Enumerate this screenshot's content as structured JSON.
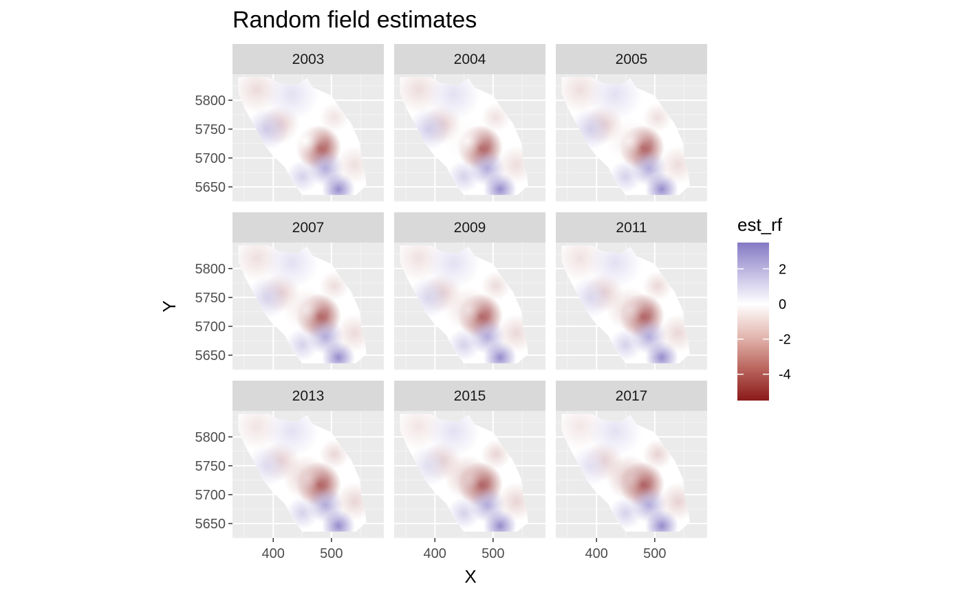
{
  "chart_data": {
    "type": "heatmap",
    "title": "Random field estimates",
    "xlabel": "X",
    "ylabel": "Y",
    "facets": [
      "2003",
      "2004",
      "2005",
      "2007",
      "2009",
      "2011",
      "2013",
      "2015",
      "2017"
    ],
    "x_ticks": [
      400,
      500
    ],
    "y_ticks": [
      5650,
      5700,
      5750,
      5800
    ],
    "xlim": [
      330,
      590
    ],
    "ylim": [
      5625,
      5845
    ],
    "legend": {
      "title": "est_rf",
      "ticks": [
        2,
        0,
        -2,
        -4
      ],
      "range": [
        -5.5,
        3.5
      ],
      "low_color": "#8b1a1a",
      "mid_color": "#ffffff",
      "high_color": "#8479c4",
      "placement": "right"
    },
    "panel_background": "#ebebeb",
    "strip_background": "#d9d9d9",
    "grid": true
  }
}
